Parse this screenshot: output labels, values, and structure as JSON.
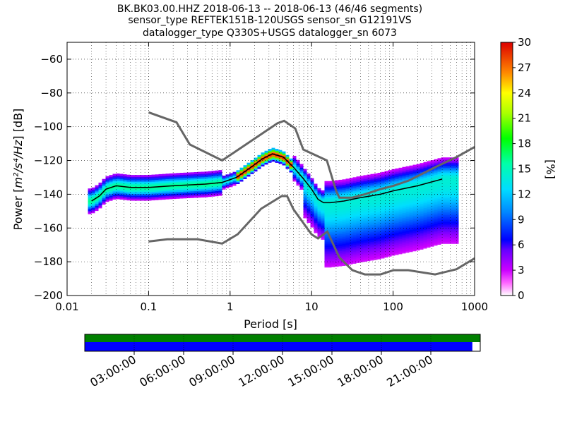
{
  "chart_data": {
    "type": "heatmap",
    "title_lines": [
      "BK.BK03.00.HHZ   2018-06-13 -- 2018-06-13  (46/46 segments)",
      "sensor_type REFTEK151B-120USGS sensor_sn G12191VS",
      "datalogger_type Q330S+USGS datalogger_sn 6073"
    ],
    "xlabel": "Period [s]",
    "ylabel": "Power [m²/s⁴/Hz] [dB]",
    "ylabel_parts": {
      "pre": "Power [",
      "unit": "m²/s⁴/Hz",
      "post": "] [dB]"
    },
    "x_scale": "log",
    "xlim": [
      0.01,
      1000
    ],
    "ylim": [
      -200,
      -50
    ],
    "x_tick_labels": [
      "0.01",
      "0.1",
      "1",
      "10",
      "100",
      "1000"
    ],
    "x_tick_values": [
      0.01,
      0.1,
      1,
      10,
      100,
      1000
    ],
    "y_tick_values": [
      -60,
      -80,
      -100,
      -120,
      -140,
      -160,
      -180,
      -200
    ],
    "y_tick_labels": [
      "−60",
      "−80",
      "−100",
      "−120",
      "−140",
      "−160",
      "−180",
      "−200"
    ],
    "grid": true,
    "colorbar": {
      "label": "[%]",
      "range": [
        0,
        30
      ],
      "tick_labels": [
        "30",
        "27",
        "24",
        "21",
        "18",
        "15",
        "12",
        "9",
        "6",
        "3",
        "0"
      ],
      "tick_values": [
        30,
        27,
        24,
        21,
        18,
        15,
        12,
        9,
        6,
        3,
        0
      ]
    },
    "noise_models": [
      {
        "x": [
          0.1,
          0.22,
          0.32,
          0.8,
          3.8,
          4.6,
          6.3,
          7.9,
          15.4,
          20,
          21.9,
          31.6,
          45,
          70,
          101,
          154,
          328,
          600,
          1000
        ],
        "y": [
          -91.5,
          -97.4,
          -110.5,
          -120,
          -98,
          -96.5,
          -101,
          -113.5,
          -120,
          -138,
          -142,
          -142,
          -140,
          -137,
          -135,
          -132,
          -124,
          -118,
          -112
        ]
      },
      {
        "x": [
          0.1,
          0.17,
          0.4,
          0.8,
          1.24,
          2.4,
          4.3,
          5,
          6,
          10,
          12,
          15.6,
          21.9,
          31.6,
          45,
          70,
          101,
          154,
          328,
          600,
          1000
        ],
        "y": [
          -168,
          -166.7,
          -166.7,
          -169.2,
          -163.7,
          -148.6,
          -141.1,
          -141.1,
          -149,
          -163.8,
          -166.2,
          -162.1,
          -177.5,
          -185,
          -187.5,
          -187.5,
          -185,
          -185,
          -187.5,
          -184.4,
          -178
        ]
      }
    ],
    "mode_line": {
      "x": [
        0.02,
        0.025,
        0.03,
        0.04,
        0.06,
        0.1,
        0.2,
        0.5,
        0.8,
        1.2,
        1.8,
        2.5,
        3.3,
        4.5,
        6,
        8,
        10,
        12,
        14,
        17,
        25,
        40,
        70,
        100,
        200,
        400
      ],
      "y": [
        -144,
        -141,
        -137,
        -135,
        -136,
        -136,
        -135,
        -134,
        -133,
        -130,
        -124,
        -119,
        -116,
        -118,
        -124,
        -131,
        -137,
        -143,
        -145,
        -145,
        -144,
        -142,
        -140,
        -138,
        -135,
        -131
      ]
    },
    "time_axis": {
      "tick_labels": [
        "03:00:00",
        "06:00:00",
        "09:00:00",
        "12:00:00",
        "15:00:00",
        "18:00:00",
        "21:00:00"
      ],
      "tick_hours": [
        3,
        6,
        9,
        12,
        15,
        18,
        21
      ],
      "range_hours": [
        0,
        24
      ],
      "data_coverage_fraction": 1.0,
      "segment_coverage_fraction": 0.98,
      "data_color": "#008000",
      "segment_color": "#0000ff"
    }
  }
}
